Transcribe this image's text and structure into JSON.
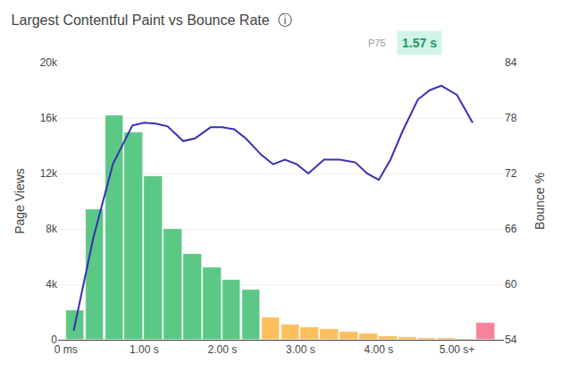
{
  "chart_data": {
    "type": "bar",
    "title": "Largest Contentful Paint vs Bounce Rate  ⓘ",
    "ylabel": "Page Views",
    "y2label": "Bounce %",
    "annotations": [
      {
        "text": "P75"
      },
      {
        "text": "1.57 s",
        "color": "#1a9a6b",
        "bgcolor": "#d0f5e8"
      }
    ],
    "series": [
      {
        "type": "bar",
        "x": [
          0,
          0.25,
          0.5,
          0.75,
          1,
          1.25,
          1.5,
          1.75,
          2,
          2.25,
          2.5,
          2.75,
          3,
          3.25,
          3.5,
          3.75,
          4,
          4.25,
          4.5,
          4.75,
          5,
          5.25
        ],
        "values": [
          2100,
          9400,
          16200,
          15000,
          11800,
          8000,
          6200,
          5200,
          4300,
          3600,
          1600,
          1100,
          900,
          750,
          600,
          420,
          280,
          200,
          150,
          100,
          80,
          1200
        ],
        "colors": [
          "#5bc885",
          "#5bc885",
          "#5bc885",
          "#5bc885",
          "#5bc885",
          "#5bc885",
          "#5bc885",
          "#5bc885",
          "#5bc885",
          "#5bc885",
          "#fbbf5e",
          "#fbbf5e",
          "#fbbf5e",
          "#fbbf5e",
          "#fbbf5e",
          "#fbbf5e",
          "#fbbf5e",
          "#fbbf5e",
          "#fbbf5e",
          "#fbbf5e",
          "#fbbf5e",
          "#f4849a"
        ]
      },
      {
        "type": "line",
        "axis": "y2",
        "color": "#3730b5",
        "x": [
          0.1,
          0.35,
          0.6,
          0.85,
          1.0,
          1.15,
          1.3,
          1.5,
          1.65,
          1.85,
          2.0,
          2.15,
          2.3,
          2.5,
          2.65,
          2.8,
          2.95,
          3.1,
          3.3,
          3.5,
          3.7,
          3.85,
          4.0,
          4.15,
          4.3,
          4.5,
          4.65,
          4.8,
          5.0,
          5.2
        ],
        "values": [
          55.0,
          65.0,
          73.0,
          77.2,
          77.5,
          77.4,
          77.1,
          75.5,
          75.8,
          77.0,
          77.0,
          76.8,
          75.8,
          74.0,
          73.0,
          73.5,
          73.0,
          72.0,
          73.5,
          73.5,
          73.2,
          72.0,
          71.3,
          73.5,
          76.5,
          80.0,
          81.0,
          81.5,
          80.5,
          77.5
        ]
      }
    ],
    "xlim": [
      -0.1,
      5.6
    ],
    "xticks": [
      {
        "value": 0,
        "label": "0 ms"
      },
      {
        "value": 1,
        "label": "1.00 s"
      },
      {
        "value": 2,
        "label": "2.00 s"
      },
      {
        "value": 3,
        "label": "3.00 s"
      },
      {
        "value": 4,
        "label": "4.00 s"
      },
      {
        "value": 5,
        "label": "5.00 s+"
      }
    ],
    "ylim": [
      0,
      20000
    ],
    "yticks": [
      0,
      {
        "value": 4000,
        "label": "4k"
      },
      {
        "value": 8000,
        "label": "8k"
      },
      {
        "value": 12000,
        "label": "12k"
      },
      {
        "value": 16000,
        "label": "16k"
      },
      {
        "value": 20000,
        "label": "20k"
      }
    ],
    "y2lim": [
      54,
      84
    ],
    "y2ticks": [
      54,
      60,
      66,
      72,
      78,
      84
    ],
    "grid": true
  }
}
